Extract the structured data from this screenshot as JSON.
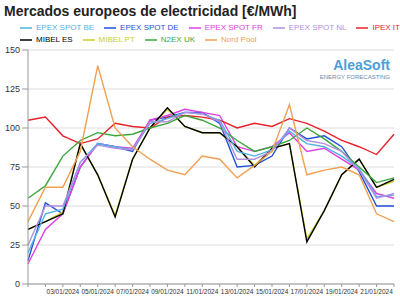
{
  "chart_data": {
    "type": "line",
    "title": "Mercados europeos de electricidad [€/MWh]",
    "annotations": [
      "AleaSoft",
      "ENERGY FORECASTING"
    ],
    "categories": [
      null,
      null,
      "03/01/2024",
      null,
      "05/01/2024",
      null,
      "07/01/2024",
      null,
      "09/01/2024",
      null,
      "11/01/2024",
      null,
      "13/01/2024",
      null,
      "15/01/2024",
      null,
      "17/01/2024",
      null,
      "19/01/2024",
      null,
      "21/01/2024",
      null
    ],
    "series": [
      {
        "name": "EPEX SPOT DE",
        "color": "#1f4fd8",
        "values": [
          15,
          52,
          45,
          75,
          90,
          88,
          85,
          105,
          107,
          110,
          110,
          103,
          75,
          76,
          82,
          100,
          93,
          95,
          88,
          72,
          50,
          50
        ]
      },
      {
        "name": "EPEX SPOT FR",
        "color": "#e040e0",
        "values": [
          13,
          35,
          45,
          75,
          90,
          88,
          87,
          105,
          108,
          112,
          110,
          108,
          88,
          85,
          88,
          97,
          85,
          87,
          80,
          73,
          58,
          55
        ]
      },
      {
        "name": "MIBEL PT",
        "color": "#c8d020",
        "values": [
          35,
          40,
          46,
          90,
          70,
          44,
          80,
          100,
          112,
          101,
          97,
          97,
          88,
          76,
          87,
          90,
          29,
          47,
          70,
          80,
          62,
          66
        ]
      },
      {
        "name": "MIBEL ES",
        "color": "#000000",
        "values": [
          35,
          40,
          45,
          90,
          70,
          43,
          80,
          100,
          113,
          101,
          97,
          97,
          88,
          75,
          87,
          90,
          27,
          47,
          70,
          80,
          62,
          67
        ]
      },
      {
        "name": "IPEX IT",
        "color": "#e8202a",
        "values": [
          105,
          107,
          95,
          90,
          93,
          103,
          101,
          100,
          107,
          108,
          107,
          105,
          100,
          103,
          101,
          106,
          103,
          98,
          92,
          88,
          83,
          96
        ]
      },
      {
        "name": "N2EX UK",
        "color": "#3aa63a",
        "values": [
          55,
          63,
          82,
          92,
          97,
          95,
          96,
          100,
          103,
          108,
          105,
          100,
          92,
          85,
          88,
          92,
          100,
          93,
          85,
          75,
          65,
          68
        ]
      },
      {
        "name": "EPEX SPOT BE",
        "color": "#4fb0e8",
        "values": [
          20,
          45,
          48,
          78,
          90,
          88,
          86,
          103,
          106,
          110,
          109,
          105,
          85,
          82,
          86,
          98,
          90,
          88,
          82,
          74,
          56,
          57
        ]
      },
      {
        "name": "EPEX SPOT NL",
        "color": "#b090e0",
        "values": [
          25,
          50,
          50,
          78,
          89,
          87,
          86,
          104,
          104,
          110,
          109,
          104,
          80,
          80,
          85,
          100,
          92,
          90,
          85,
          73,
          55,
          58
        ]
      },
      {
        "name": "Nord Pool",
        "color": "#f0a050",
        "values": [
          40,
          62,
          62,
          85,
          140,
          100,
          88,
          80,
          73,
          70,
          82,
          80,
          68,
          76,
          85,
          115,
          70,
          73,
          75,
          70,
          45,
          40
        ]
      }
    ],
    "ylim": [
      0,
      150
    ],
    "yticks": [
      0,
      25,
      50,
      75,
      100,
      125,
      150
    ],
    "grid": true,
    "legend": "top"
  }
}
